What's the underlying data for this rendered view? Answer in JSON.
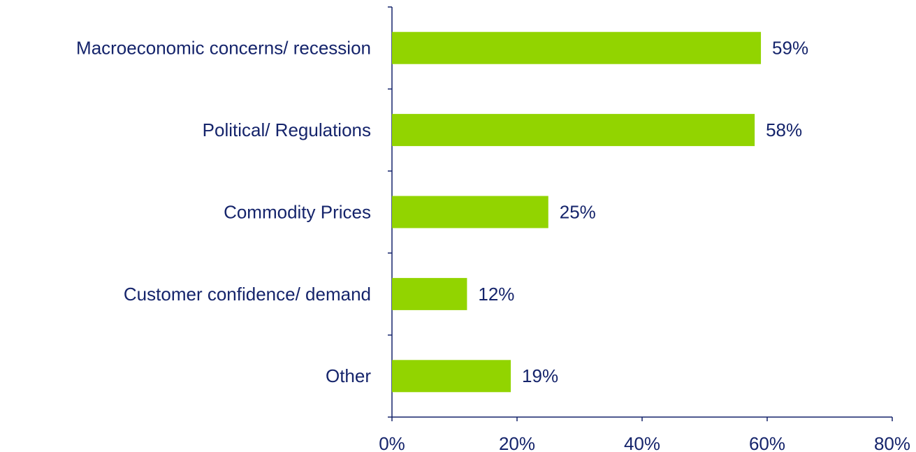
{
  "chart_data": {
    "type": "hbar",
    "categories": [
      "Macroeconomic concerns/ recession",
      "Political/ Regulations",
      "Commodity Prices",
      "Customer confidence/ demand",
      "Other"
    ],
    "values": [
      59,
      58,
      25,
      12,
      19
    ],
    "value_labels": [
      "59%",
      "58%",
      "25%",
      "12%",
      "19%"
    ],
    "color": "#92d400",
    "xlim": [
      0,
      80
    ],
    "xticks": [
      {
        "value": 0,
        "label": "0%"
      },
      {
        "value": 20,
        "label": "20%"
      },
      {
        "value": 40,
        "label": "40%"
      },
      {
        "value": 60,
        "label": "60%"
      },
      {
        "value": 80,
        "label": "80%"
      }
    ],
    "grid": false
  }
}
